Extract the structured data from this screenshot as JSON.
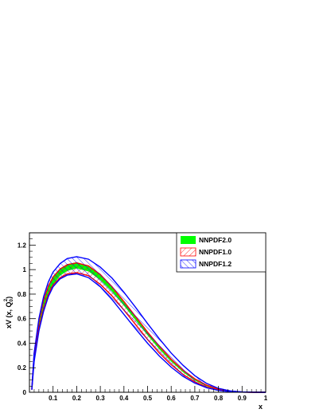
{
  "chart_data": {
    "type": "area",
    "xlabel": "x",
    "ylabel": "xV (x, Q",
    "ylabel_sub": "0",
    "ylabel_sup": "2",
    "ylabel_tail": ")",
    "xlim": [
      0.01,
      1.0
    ],
    "ylim": [
      0,
      1.3
    ],
    "x_ticks": [
      0.1,
      0.2,
      0.3,
      0.4,
      0.5,
      0.6,
      0.7,
      0.8,
      0.9,
      1
    ],
    "x_tick_labels": [
      "0.1",
      "0.2",
      "0.3",
      "0.4",
      "0.5",
      "0.6",
      "0.7",
      "0.8",
      "0.9",
      "1"
    ],
    "y_ticks": [
      0,
      0.2,
      0.4,
      0.6,
      0.8,
      1,
      1.2
    ],
    "y_tick_labels": [
      "0",
      "0.2",
      "0.4",
      "0.6",
      "0.8",
      "1",
      "1.2"
    ],
    "grid": false,
    "legend_position": "top-right",
    "x": [
      0.01,
      0.02,
      0.04,
      0.06,
      0.08,
      0.1,
      0.13,
      0.16,
      0.2,
      0.25,
      0.3,
      0.35,
      0.4,
      0.45,
      0.5,
      0.55,
      0.6,
      0.65,
      0.7,
      0.75,
      0.8,
      0.85,
      0.9,
      0.95,
      1.0
    ],
    "series": [
      {
        "name": "NNPDF2.0",
        "color": "#00ff00",
        "style": "solid",
        "upper": [
          0.03,
          0.33,
          0.6,
          0.76,
          0.87,
          0.945,
          1.01,
          1.045,
          1.06,
          1.03,
          0.955,
          0.855,
          0.735,
          0.61,
          0.485,
          0.37,
          0.265,
          0.175,
          0.105,
          0.055,
          0.024,
          0.008,
          0.002,
          0.0003,
          0.0
        ],
        "lower": [
          0.02,
          0.26,
          0.5,
          0.67,
          0.79,
          0.875,
          0.95,
          0.99,
          1.01,
          0.985,
          0.915,
          0.82,
          0.705,
          0.585,
          0.465,
          0.35,
          0.25,
          0.163,
          0.096,
          0.049,
          0.021,
          0.007,
          0.0015,
          0.0002,
          0.0
        ]
      },
      {
        "name": "NNPDF1.0",
        "color": "#ff0000",
        "style": "hatch",
        "upper": [
          0.03,
          0.31,
          0.58,
          0.75,
          0.865,
          0.94,
          1.005,
          1.04,
          1.055,
          1.03,
          0.96,
          0.86,
          0.74,
          0.615,
          0.49,
          0.375,
          0.27,
          0.18,
          0.11,
          0.058,
          0.026,
          0.009,
          0.0022,
          0.0003,
          0.0
        ],
        "lower": [
          0.02,
          0.27,
          0.52,
          0.68,
          0.8,
          0.875,
          0.935,
          0.965,
          0.975,
          0.95,
          0.88,
          0.785,
          0.67,
          0.55,
          0.43,
          0.32,
          0.225,
          0.145,
          0.085,
          0.043,
          0.018,
          0.006,
          0.0013,
          0.0002,
          0.0
        ]
      },
      {
        "name": "NNPDF1.2",
        "color": "#0000ff",
        "style": "hatch",
        "upper": [
          0.03,
          0.32,
          0.6,
          0.78,
          0.9,
          0.98,
          1.05,
          1.09,
          1.105,
          1.085,
          1.02,
          0.93,
          0.815,
          0.69,
          0.56,
          0.435,
          0.32,
          0.22,
          0.135,
          0.072,
          0.032,
          0.011,
          0.0025,
          0.0004,
          0.0
        ],
        "lower": [
          0.02,
          0.25,
          0.5,
          0.66,
          0.78,
          0.86,
          0.925,
          0.955,
          0.965,
          0.935,
          0.86,
          0.755,
          0.635,
          0.515,
          0.4,
          0.295,
          0.205,
          0.13,
          0.075,
          0.037,
          0.015,
          0.005,
          0.001,
          0.0001,
          0.0
        ]
      }
    ]
  }
}
